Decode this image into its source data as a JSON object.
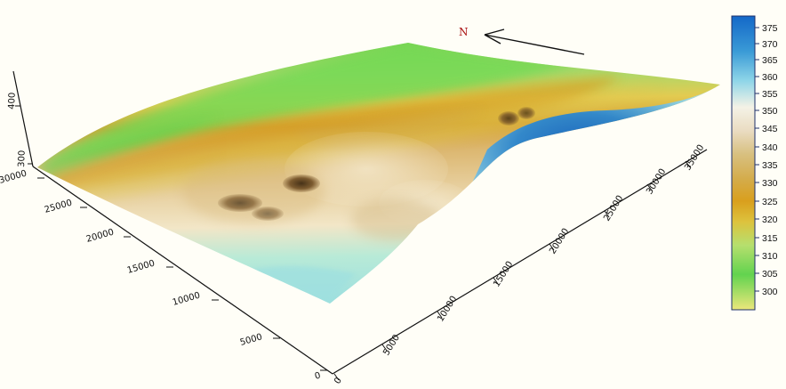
{
  "north": {
    "label": "N",
    "arrow_icon": "north-arrow-icon"
  },
  "axes": {
    "x_ticks": [
      "0",
      "5000",
      "10000",
      "15000",
      "20000",
      "25000",
      "30000",
      "35000"
    ],
    "y_ticks": [
      "0",
      "5000",
      "10000",
      "15000",
      "20000",
      "25000",
      "30000"
    ],
    "z_ticks": [
      "300",
      "400"
    ]
  },
  "colorbar": {
    "ticks": [
      "375",
      "370",
      "365",
      "360",
      "355",
      "350",
      "345",
      "340",
      "335",
      "330",
      "325",
      "320",
      "315",
      "310",
      "305",
      "300"
    ],
    "colors": {
      "high": "#1468c8",
      "mid_light": "#f4f2e6",
      "mid_tan": "#d8c080",
      "mid_orange": "#d7a322",
      "low_green": "#5ece55",
      "lowest": "#ece77b"
    }
  },
  "surface": {
    "colors": {
      "green": "#7ed85a",
      "yellow": "#d8c34a",
      "orange": "#c98f2a",
      "tan": "#dfc28a",
      "cream": "#f0e5c6",
      "cyan": "#9fe0df",
      "blue": "#1a69c8",
      "dark": "#574020"
    }
  }
}
